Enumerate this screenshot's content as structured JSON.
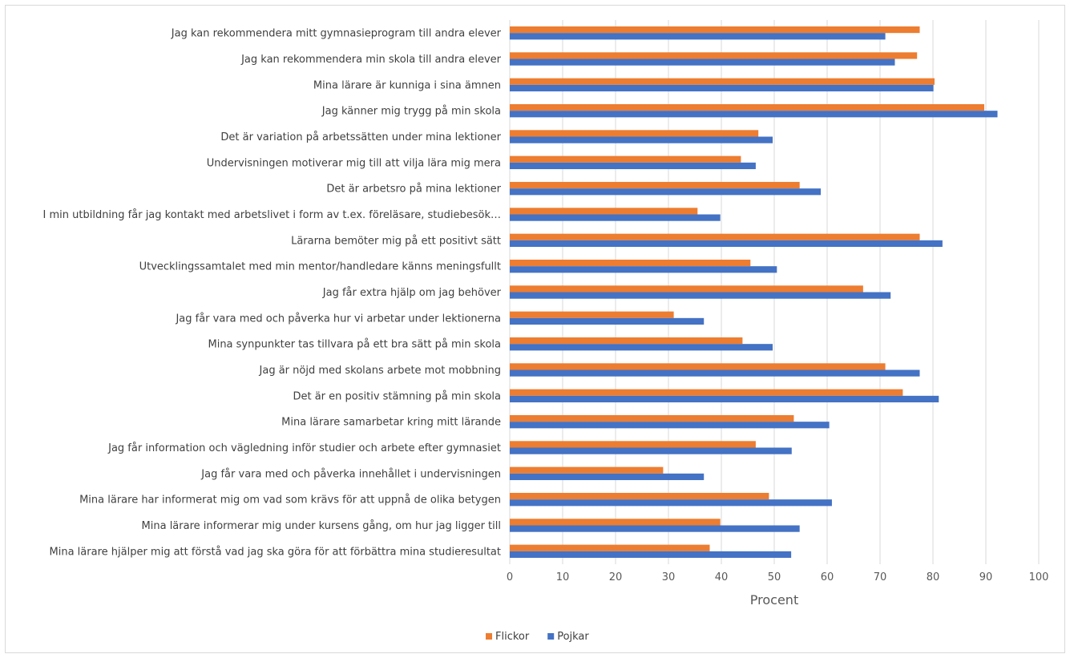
{
  "chart_data": {
    "type": "bar",
    "orientation": "horizontal",
    "title": "",
    "xlabel": "Procent",
    "ylabel": "",
    "xlim": [
      0,
      100
    ],
    "xticks": [
      0,
      10,
      20,
      30,
      40,
      50,
      60,
      70,
      80,
      90,
      100
    ],
    "grid": true,
    "legend_position": "bottom",
    "categories": [
      "Jag kan rekommendera mitt gymnasieprogram till andra elever",
      "Jag kan rekommendera min skola till andra elever",
      "Mina lärare är kunniga i sina ämnen",
      "Jag känner mig trygg på min skola",
      "Det är variation på arbetssätten under mina lektioner",
      "Undervisningen motiverar mig till att vilja lära mig mera",
      "Det är arbetsro på mina lektioner",
      "I min utbildning får jag kontakt med arbetslivet i form av t.ex. föreläsare, studiebesök…",
      "Lärarna bemöter mig på ett positivt sätt",
      "Utvecklingssamtalet med min mentor/handledare känns meningsfullt",
      "Jag får extra hjälp om jag behöver",
      "Jag får vara med och påverka hur vi arbetar under lektionerna",
      "Mina synpunkter tas tillvara på ett bra sätt på min skola",
      "Jag är nöjd med skolans arbete mot mobbning",
      "Det är en positiv stämning på min skola",
      "Mina lärare samarbetar kring mitt lärande",
      "Jag får information och vägledning inför studier och arbete efter gymnasiet",
      "Jag får vara med och påverka innehållet i undervisningen",
      "Mina lärare har informerat mig om vad som krävs för att uppnå de olika betygen",
      "Mina lärare informerar mig under kursens gång, om hur jag ligger till",
      "Mina lärare hjälper mig att förstå vad jag ska göra för att förbättra mina studieresultat"
    ],
    "series": [
      {
        "name": "Flickor",
        "color": "#ED7D31",
        "values": [
          77.5,
          77,
          80.3,
          89.7,
          47,
          43.7,
          54.8,
          35.5,
          77.5,
          45.5,
          66.8,
          31,
          44,
          71,
          74.3,
          53.7,
          46.5,
          29,
          49,
          39.8,
          37.8
        ]
      },
      {
        "name": "Pojkar",
        "color": "#4472C4",
        "values": [
          71,
          72.8,
          80.1,
          92.2,
          49.7,
          46.5,
          58.8,
          39.8,
          81.8,
          50.5,
          72,
          36.7,
          49.7,
          77.5,
          81.1,
          60.4,
          53.3,
          36.7,
          60.9,
          54.8,
          53.2
        ]
      }
    ]
  }
}
